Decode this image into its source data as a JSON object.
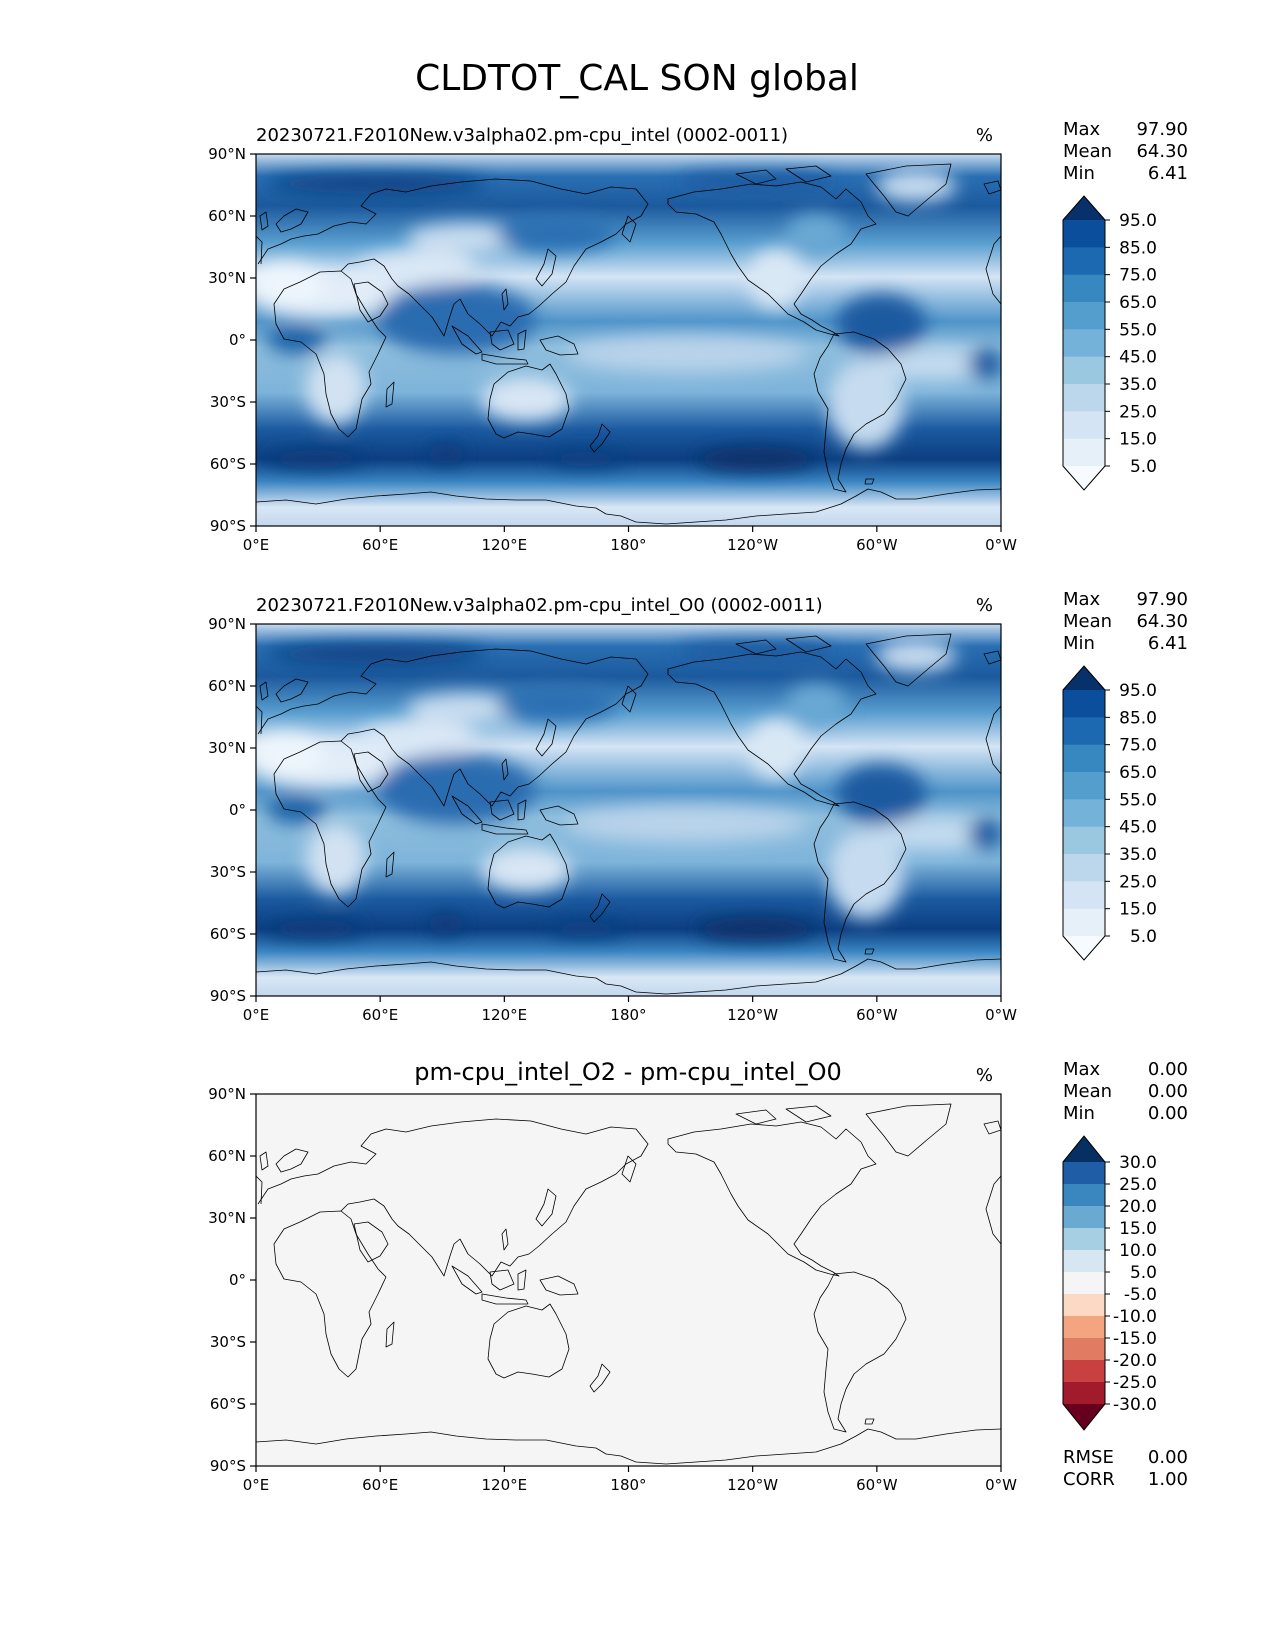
{
  "title": "CLDTOT_CAL SON global",
  "chart_data": [
    {
      "type": "heatmap",
      "title": "20230721.F2010New.v3alpha02.pm-cpu_intel (0002-0011)",
      "units": "%",
      "stats": {
        "max_label": "Max",
        "max": "97.90",
        "mean_label": "Mean",
        "mean": "64.30",
        "min_label": "Min",
        "min": "6.41"
      },
      "x_ticks": [
        "0°E",
        "60°E",
        "120°E",
        "180°",
        "120°W",
        "60°W",
        "0°W"
      ],
      "y_ticks": [
        "90°N",
        "60°N",
        "30°N",
        "0°",
        "30°S",
        "60°S",
        "90°S"
      ],
      "xlim": [
        0,
        360
      ],
      "ylim": [
        -90,
        90
      ],
      "colorbar": {
        "extend": "both",
        "ticks": [
          "95.0",
          "85.0",
          "75.0",
          "65.0",
          "55.0",
          "45.0",
          "35.0",
          "25.0",
          "15.0",
          "5.0"
        ],
        "colors": [
          "#08306b",
          "#0b4f9c",
          "#1c68b1",
          "#3787c0",
          "#539ecd",
          "#74b2d9",
          "#9ac8e0",
          "#bcd7ec",
          "#d4e4f4",
          "#e6f0f9",
          "#f7fbff"
        ]
      }
    },
    {
      "type": "heatmap",
      "title": "20230721.F2010New.v3alpha02.pm-cpu_intel_O0 (0002-0011)",
      "units": "%",
      "stats": {
        "max_label": "Max",
        "max": "97.90",
        "mean_label": "Mean",
        "mean": "64.30",
        "min_label": "Min",
        "min": "6.41"
      },
      "x_ticks": [
        "0°E",
        "60°E",
        "120°E",
        "180°",
        "120°W",
        "60°W",
        "0°W"
      ],
      "y_ticks": [
        "90°N",
        "60°N",
        "30°N",
        "0°",
        "30°S",
        "60°S",
        "90°S"
      ],
      "xlim": [
        0,
        360
      ],
      "ylim": [
        -90,
        90
      ],
      "colorbar": {
        "extend": "both",
        "ticks": [
          "95.0",
          "85.0",
          "75.0",
          "65.0",
          "55.0",
          "45.0",
          "35.0",
          "25.0",
          "15.0",
          "5.0"
        ],
        "colors": [
          "#08306b",
          "#0b4f9c",
          "#1c68b1",
          "#3787c0",
          "#539ecd",
          "#74b2d9",
          "#9ac8e0",
          "#bcd7ec",
          "#d4e4f4",
          "#e6f0f9",
          "#f7fbff"
        ]
      }
    },
    {
      "type": "heatmap",
      "title": "pm-cpu_intel_O2 - pm-cpu_intel_O0",
      "units": "%",
      "stats": {
        "max_label": "Max",
        "max": "0.00",
        "mean_label": "Mean",
        "mean": "0.00",
        "min_label": "Min",
        "min": "0.00"
      },
      "bottom_stats": {
        "rmse_label": "RMSE",
        "rmse": "0.00",
        "corr_label": "CORR",
        "corr": "1.00"
      },
      "x_ticks": [
        "0°E",
        "60°E",
        "120°E",
        "180°",
        "120°W",
        "60°W",
        "0°W"
      ],
      "y_ticks": [
        "90°N",
        "60°N",
        "30°N",
        "0°",
        "30°S",
        "60°S",
        "90°S"
      ],
      "xlim": [
        0,
        360
      ],
      "ylim": [
        -90,
        90
      ],
      "colorbar": {
        "extend": "both",
        "ticks": [
          "30.0",
          "25.0",
          "20.0",
          "15.0",
          "10.0",
          "5.0",
          "-5.0",
          "-10.0",
          "-15.0",
          "-20.0",
          "-25.0",
          "-30.0"
        ],
        "colors": [
          "#053061",
          "#1f5ea6",
          "#3a87bf",
          "#6aa9d0",
          "#a6cfe4",
          "#d6e7f1",
          "#f5f5f5",
          "#fbd9c5",
          "#f3a481",
          "#e07c62",
          "#c8403f",
          "#a21b2d",
          "#67001f"
        ]
      }
    }
  ]
}
